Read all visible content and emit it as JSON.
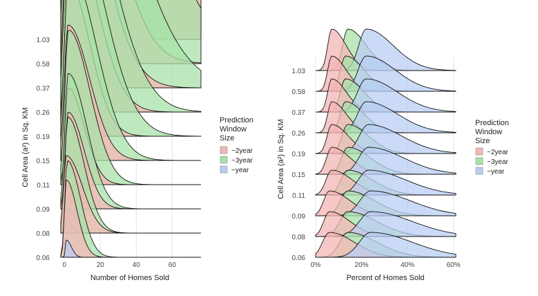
{
  "colors": {
    "2year": "#f4b6b6",
    "3year": "#a8e2a8",
    "year": "#b9cdf3",
    "grid": "#e4e4e4",
    "baseline": "#111111"
  },
  "chart_data": [
    {
      "type": "ridgeline",
      "xlabel": "Number of Homes Sold",
      "ylabel": "Cell Area (a²) in Sq. KM",
      "xlim": [
        -2,
        76
      ],
      "xticks": [
        0,
        20,
        40,
        60
      ],
      "xtick_labels": [
        "0",
        "20",
        "40",
        "60"
      ],
      "categories": [
        "1.03",
        "0.58",
        "0.37",
        "0.26",
        "0.19",
        "0.15",
        "0.11",
        "0.09",
        "0.08",
        "0.06"
      ],
      "series_names": [
        "~2year",
        "~3year",
        "~year"
      ],
      "legend_title": [
        "Prediction",
        "Window",
        "Size"
      ],
      "ridges": [
        {
          "cat": "1.03",
          "peaks": [
            [
              10,
              12,
              0.25
            ],
            [
              25,
              20,
              0.2
            ],
            [
              35,
              15,
              0.22
            ]
          ]
        },
        {
          "cat": "0.58",
          "peaks": [
            [
              3,
              5,
              0.55
            ],
            [
              7,
              12,
              0.45
            ],
            [
              15,
              20,
              0.35
            ]
          ]
        },
        {
          "cat": "0.37",
          "peaks": [
            [
              3,
              4,
              0.85
            ],
            [
              6,
              10,
              0.55
            ],
            [
              12,
              16,
              0.4
            ]
          ]
        },
        {
          "cat": "0.26",
          "peaks": [
            [
              2,
              3,
              0.95
            ],
            [
              5,
              7,
              0.6
            ],
            [
              10,
              14,
              0.5
            ]
          ]
        },
        {
          "cat": "0.19",
          "peaks": [
            [
              2,
              3,
              1.0
            ],
            [
              4,
              6,
              0.65
            ],
            [
              8,
              12,
              0.55
            ]
          ]
        },
        {
          "cat": "0.15",
          "peaks": [
            [
              2,
              2.5,
              1.0
            ],
            [
              4,
              5,
              0.7
            ],
            [
              7,
              10,
              0.6
            ]
          ]
        },
        {
          "cat": "0.11",
          "peaks": [
            [
              2,
              2.2,
              1.0
            ],
            [
              3,
              4,
              0.75
            ],
            [
              5,
              8,
              0.7
            ]
          ]
        },
        {
          "cat": "0.09",
          "peaks": [
            [
              2,
              2,
              1.0
            ],
            [
              3,
              3.5,
              0.85
            ],
            [
              5,
              7,
              0.8
            ]
          ]
        },
        {
          "cat": "0.08",
          "peaks": [
            [
              1,
              1.8,
              1.0
            ],
            [
              3,
              3,
              0.9
            ],
            [
              4,
              6,
              0.85
            ]
          ]
        },
        {
          "cat": "0.06",
          "peaks": [
            [
              1,
              1.5,
              1.0
            ],
            [
              2,
              2.5,
              0.95
            ],
            [
              4,
              5,
              0.9
            ]
          ]
        }
      ]
    },
    {
      "type": "ridgeline",
      "xlabel": "Percent of Homes Sold",
      "ylabel": "Cell Area (a²) in Sq. KM",
      "xlim": [
        0,
        0.61
      ],
      "xticks": [
        0,
        0.2,
        0.4,
        0.6
      ],
      "xtick_labels": [
        "0%",
        "20%",
        "40%",
        "60%"
      ],
      "categories": [
        "1.03",
        "0.58",
        "0.37",
        "0.26",
        "0.19",
        "0.15",
        "0.11",
        "0.09",
        "0.08",
        "0.06"
      ],
      "series_names": [
        "~2year",
        "~3year",
        "~year"
      ],
      "legend_title": [
        "Prediction",
        "Window",
        "Size"
      ],
      "ridges": [
        {
          "cat": "1.03",
          "peaks": [
            [
              0.07,
              0.14,
              0.22
            ],
            [
              0.035,
              0.045,
              0.065
            ],
            [
              1.0,
              1.0,
              1.0
            ]
          ]
        },
        {
          "cat": "0.58",
          "peaks": [
            [
              0.07,
              0.13,
              0.22
            ],
            [
              0.035,
              0.045,
              0.07
            ],
            [
              0.85,
              0.85,
              0.85
            ]
          ]
        },
        {
          "cat": "0.37",
          "peaks": [
            [
              0.07,
              0.13,
              0.22
            ],
            [
              0.035,
              0.045,
              0.075
            ],
            [
              0.8,
              0.8,
              0.8
            ]
          ]
        },
        {
          "cat": "0.26",
          "peaks": [
            [
              0.07,
              0.13,
              0.22
            ],
            [
              0.035,
              0.045,
              0.075
            ],
            [
              0.75,
              0.75,
              0.75
            ]
          ]
        },
        {
          "cat": "0.19",
          "peaks": [
            [
              0.07,
              0.14,
              0.23
            ],
            [
              0.04,
              0.05,
              0.08
            ],
            [
              0.7,
              0.7,
              0.7
            ]
          ]
        },
        {
          "cat": "0.15",
          "peaks": [
            [
              0.07,
              0.14,
              0.23
            ],
            [
              0.045,
              0.055,
              0.085
            ],
            [
              0.65,
              0.65,
              0.65
            ]
          ]
        },
        {
          "cat": "0.11",
          "peaks": [
            [
              0.07,
              0.14,
              0.23
            ],
            [
              0.05,
              0.06,
              0.09
            ],
            [
              0.6,
              0.6,
              0.6
            ]
          ]
        },
        {
          "cat": "0.09",
          "peaks": [
            [
              0.06,
              0.14,
              0.24
            ],
            [
              0.05,
              0.065,
              0.095
            ],
            [
              0.6,
              0.6,
              0.6
            ]
          ]
        },
        {
          "cat": "0.08",
          "peaks": [
            [
              0.06,
              0.14,
              0.24
            ],
            [
              0.05,
              0.07,
              0.1
            ],
            [
              0.6,
              0.6,
              0.6
            ]
          ]
        },
        {
          "cat": "0.06",
          "peaks": [
            [
              0.06,
              0.14,
              0.24
            ],
            [
              0.06,
              0.07,
              0.1
            ],
            [
              0.6,
              0.6,
              0.6
            ]
          ]
        }
      ]
    }
  ]
}
